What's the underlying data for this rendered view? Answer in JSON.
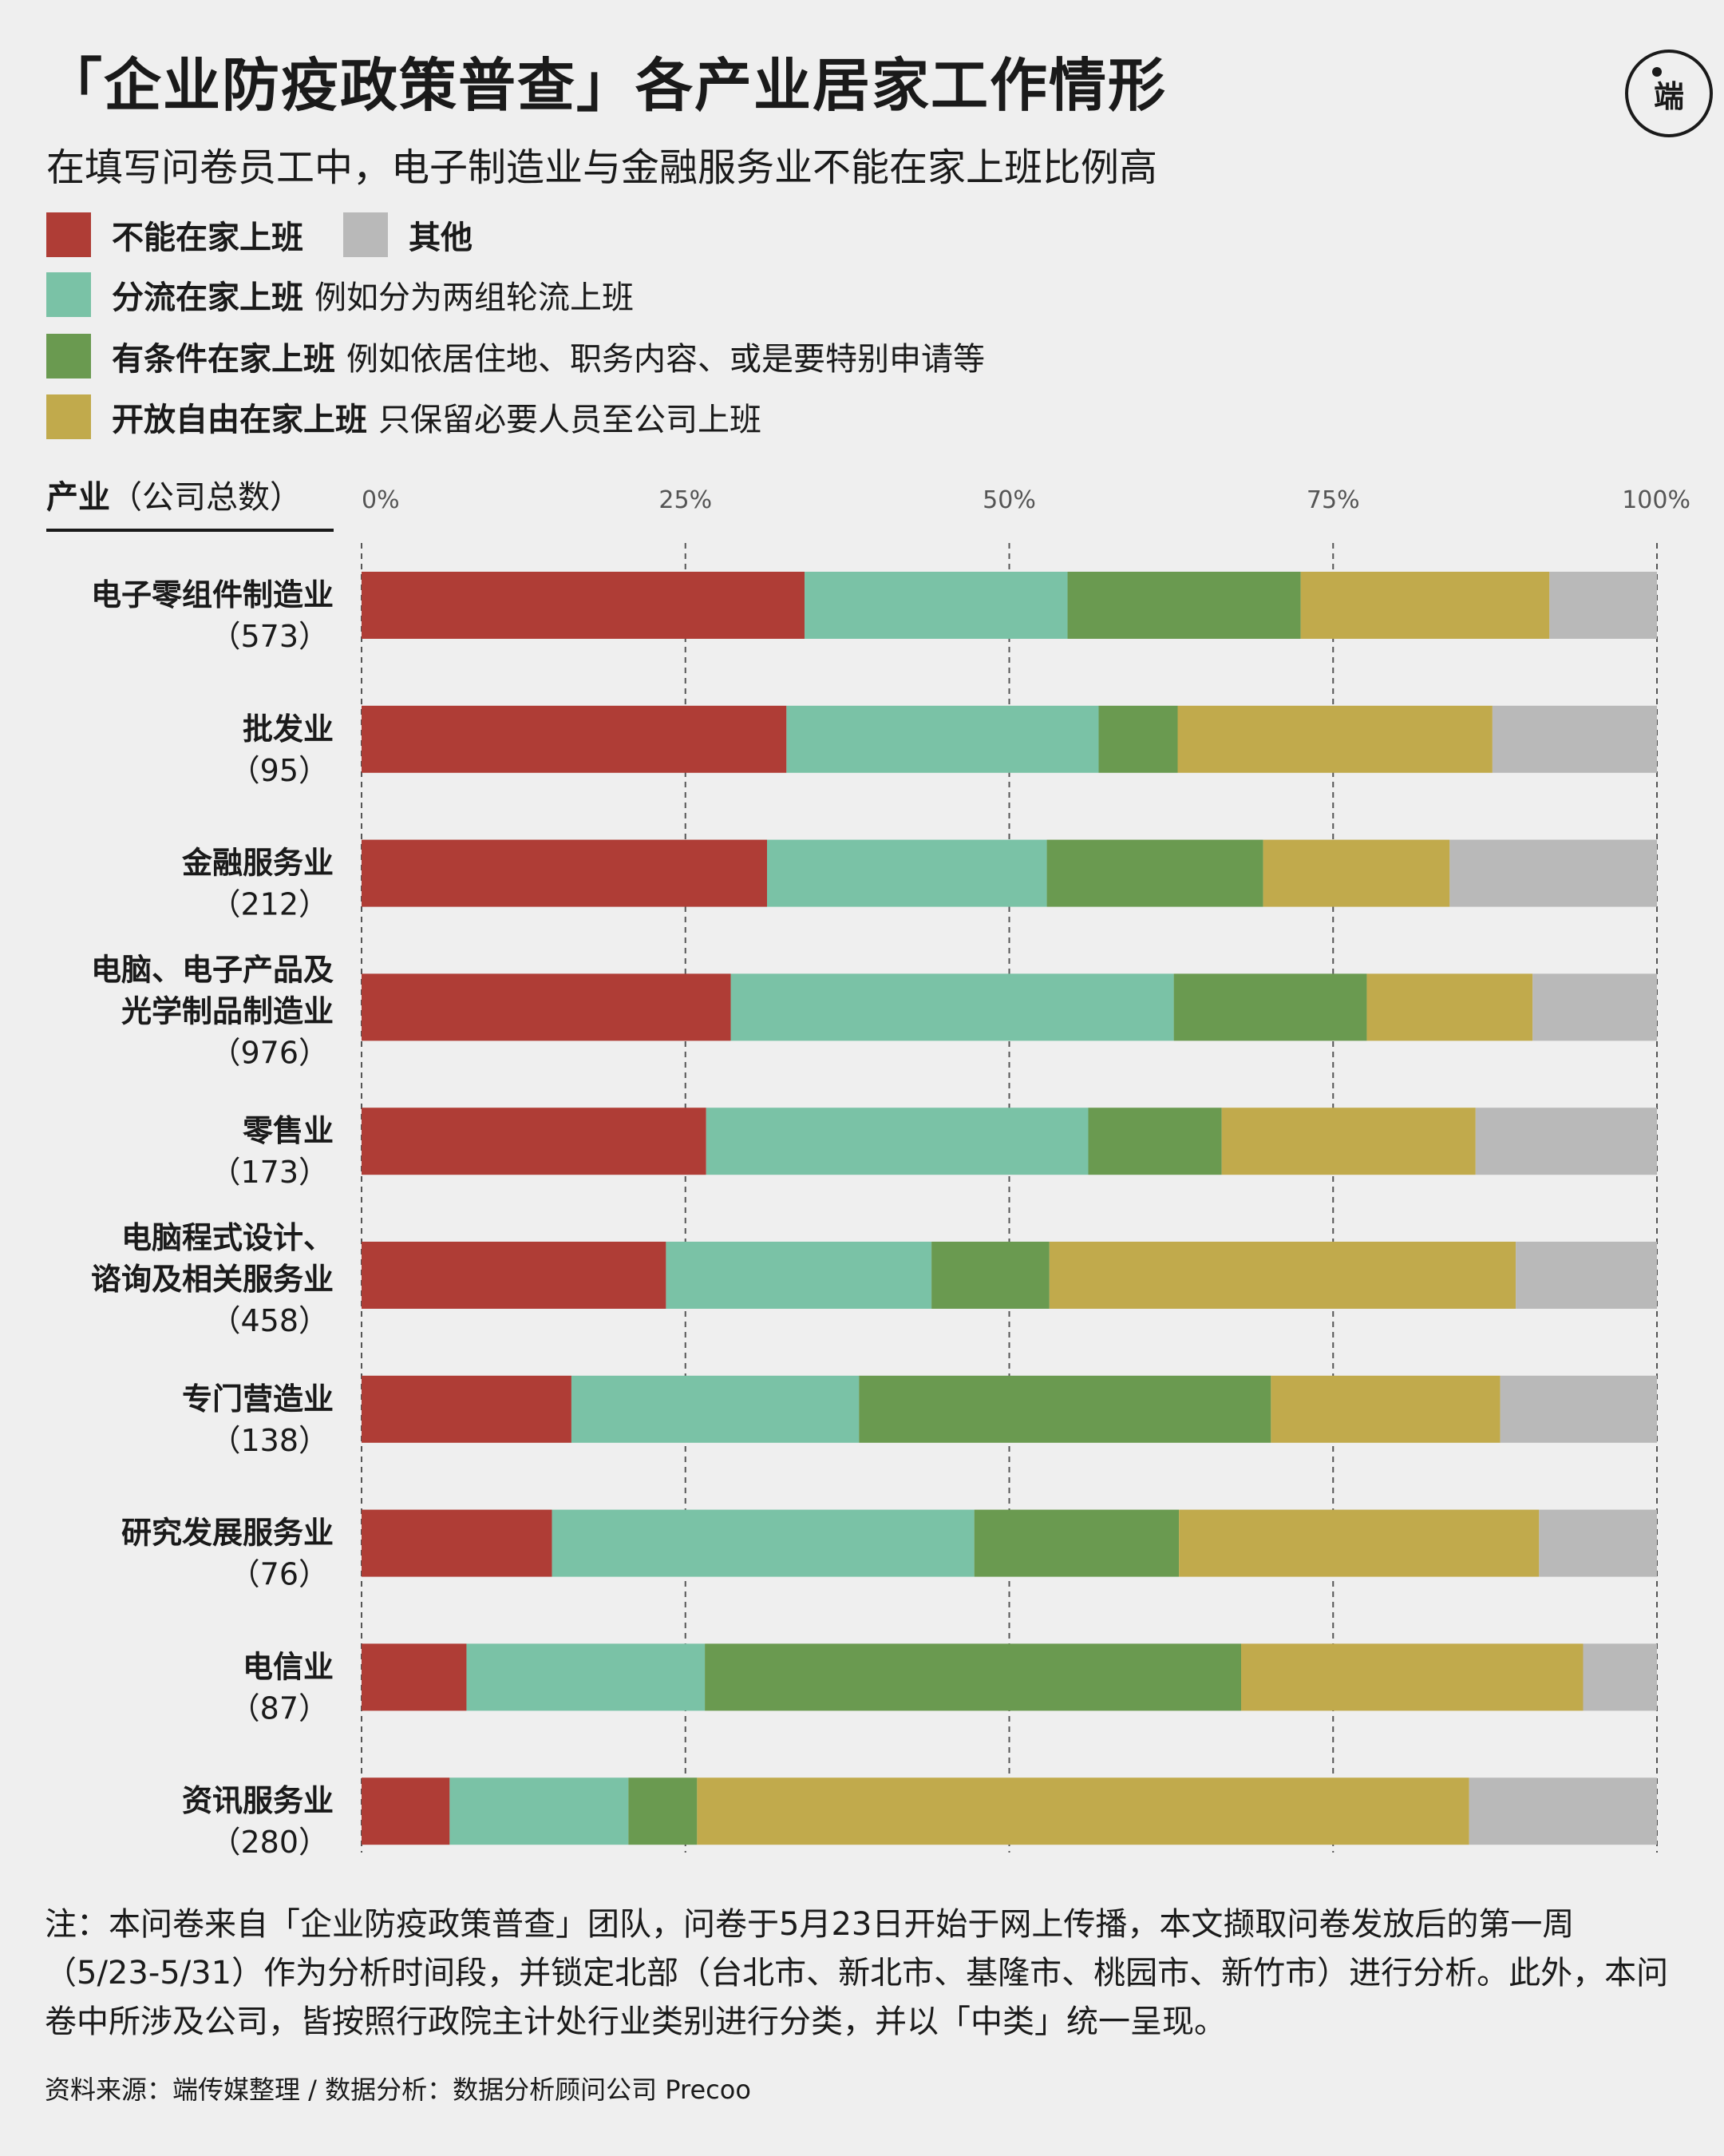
{
  "title": "「企业防疫政策普查」各产业居家工作情形",
  "subtitle": "在填写问卷员工中，电子制造业与金融服务业不能在家上班比例高",
  "logo_text": "端",
  "legend": [
    {
      "name": "不能在家上班",
      "desc": "",
      "color": "#af3d36"
    },
    {
      "name": "其他",
      "desc": "",
      "color": "#b9b9b9"
    },
    {
      "name": "分流在家上班",
      "desc": "例如分为两组轮流上班",
      "color": "#7ac2a6"
    },
    {
      "name": "有条件在家上班",
      "desc": "例如依居住地、职务内容、或是要特别申请等",
      "color": "#6a9a50"
    },
    {
      "name": "开放自由在家上班",
      "desc": "只保留必要人员至公司上班",
      "color": "#c1aa4c"
    }
  ],
  "axis_title": {
    "bold": "产业",
    "rest": "（公司总数）"
  },
  "note": "注：本问卷来自「企业防疫政策普查」团队，问卷于5月23日开始于网上传播，本文撷取问卷发放后的第一周（5/23-5/31）作为分析时间段，并锁定北部（台北市、新北市、基隆市、桃园市、新竹市）进行分析。此外，本问卷中所涉及公司，皆按照行政院主计处行业类别进行分类，并以「中类」统一呈现。",
  "source": "资料来源：端传媒整理 / 数据分析：数据分析顾问公司 Precoo",
  "chart_data": {
    "type": "bar",
    "orientation": "horizontal",
    "stacked": true,
    "xlim": [
      0,
      100
    ],
    "ticks": [
      "0%",
      "25%",
      "50%",
      "75%",
      "100%"
    ],
    "tick_values": [
      0,
      25,
      50,
      75,
      100
    ],
    "grid": "dashed vertical lines at ticks",
    "categories": [
      {
        "lines": [
          "电子零组件制造业"
        ],
        "count": "（573）"
      },
      {
        "lines": [
          "批发业"
        ],
        "count": "（95）"
      },
      {
        "lines": [
          "金融服务业"
        ],
        "count": "（212）"
      },
      {
        "lines": [
          "电脑、电子产品及",
          "光学制品制造业"
        ],
        "count": "（976）"
      },
      {
        "lines": [
          "零售业"
        ],
        "count": "（173）"
      },
      {
        "lines": [
          "电脑程式设计、",
          "谘询及相关服务业"
        ],
        "count": "（458）"
      },
      {
        "lines": [
          "专门营造业"
        ],
        "count": "（138）"
      },
      {
        "lines": [
          "研究发展服务业"
        ],
        "count": "（76）"
      },
      {
        "lines": [
          "电信业"
        ],
        "count": "（87）"
      },
      {
        "lines": [
          "资讯服务业"
        ],
        "count": "（280）"
      }
    ],
    "series": [
      {
        "name": "不能在家上班",
        "color": "#af3d36",
        "values": [
          34.2,
          32.8,
          31.3,
          28.5,
          26.6,
          23.5,
          16.2,
          14.7,
          8.1,
          6.8
        ]
      },
      {
        "name": "分流在家上班",
        "color": "#7ac2a6",
        "values": [
          20.3,
          24.1,
          21.6,
          34.2,
          29.5,
          20.5,
          22.2,
          32.6,
          18.4,
          13.8
        ]
      },
      {
        "name": "有条件在家上班",
        "color": "#6a9a50",
        "values": [
          18.0,
          6.1,
          16.7,
          14.9,
          10.3,
          9.1,
          31.8,
          15.8,
          41.4,
          5.3
        ]
      },
      {
        "name": "开放自由在家上班",
        "color": "#c1aa4c",
        "values": [
          19.2,
          24.3,
          14.4,
          12.8,
          19.6,
          36.0,
          17.7,
          27.8,
          26.4,
          59.6
        ]
      },
      {
        "name": "其他",
        "color": "#b9b9b9",
        "values": [
          8.3,
          12.7,
          16.0,
          9.6,
          14.0,
          10.9,
          12.1,
          9.1,
          5.7,
          14.5
        ]
      }
    ]
  }
}
